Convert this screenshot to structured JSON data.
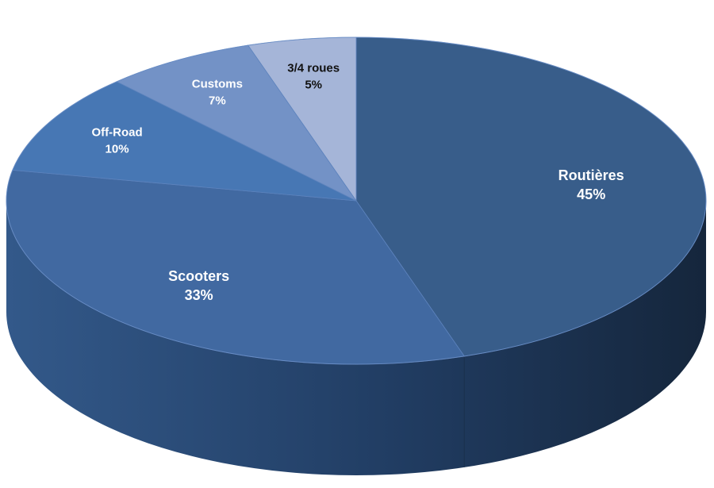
{
  "chart_data": {
    "type": "pie",
    "style": "3d",
    "slices": [
      {
        "label": "Routières",
        "value": 45,
        "percent_label": "45%",
        "color": "#385d8a",
        "text_color": "#ffffff"
      },
      {
        "label": "Scooters",
        "value": 33,
        "percent_label": "33%",
        "color": "#4169a1",
        "text_color": "#ffffff"
      },
      {
        "label": "Off-Road",
        "value": 10,
        "percent_label": "10%",
        "color": "#4777b4",
        "text_color": "#ffffff"
      },
      {
        "label": "Customs",
        "value": 7,
        "percent_label": "7%",
        "color": "#7392c6",
        "text_color": "#ffffff"
      },
      {
        "label": "3/4 roues",
        "value": 5,
        "percent_label": "5%",
        "color": "#a5b5d8",
        "text_color": "#111111"
      }
    ]
  }
}
